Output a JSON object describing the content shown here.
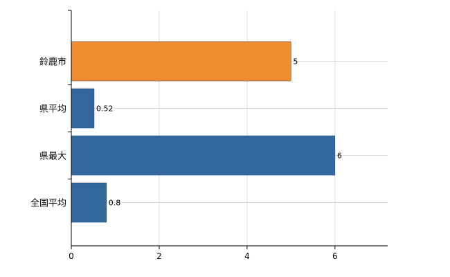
{
  "chart_data": {
    "type": "bar",
    "orientation": "horizontal",
    "title": "",
    "categories": [
      "鈴鹿市",
      "県平均",
      "県最大",
      "全国平均"
    ],
    "values": [
      5,
      0.52,
      6,
      0.8
    ],
    "value_labels": [
      "5",
      "0.52",
      "6",
      "0.8"
    ],
    "bar_colors": [
      "#EF8C2D",
      "#33679E",
      "#33679E",
      "#33679E"
    ],
    "xlim": [
      0,
      7.2
    ],
    "xticks": [
      0,
      2,
      4,
      6
    ],
    "xtick_labels": [
      "0",
      "2",
      "4",
      "6"
    ],
    "grid": true,
    "legend": "none",
    "axis_color": "#000000",
    "gridline_color": "#dcdcdc",
    "label_color": "#000000",
    "background_color": "#ffffff"
  }
}
